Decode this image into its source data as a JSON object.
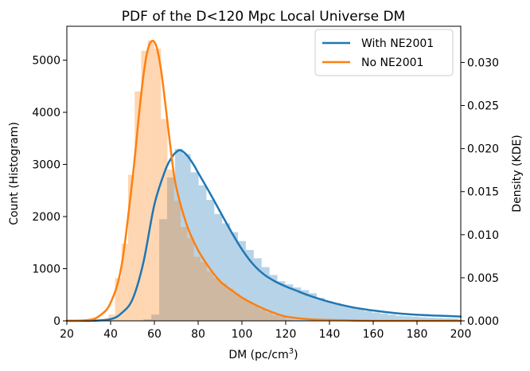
{
  "chart_data": {
    "type": "bar",
    "title": "PDF of the D<120 Mpc Local Universe DM",
    "xlabel": "DM (pc/cm",
    "xlabel_sup": "3",
    "xlabel_end": ")",
    "ylabel_left": "Count (Histogram)",
    "ylabel_right": "Density (KDE)",
    "xlim": [
      20,
      200
    ],
    "ylim_left": [
      0,
      5650
    ],
    "ylim_right": [
      0,
      0.0342
    ],
    "xticks": [
      "20",
      "40",
      "60",
      "80",
      "100",
      "120",
      "140",
      "160",
      "180",
      "200"
    ],
    "yticks_left": [
      "0",
      "1000",
      "2000",
      "3000",
      "4000",
      "5000"
    ],
    "yticks_right": [
      "0.000",
      "0.005",
      "0.010",
      "0.015",
      "0.020",
      "0.025",
      "0.030"
    ],
    "legend_position": "top-right",
    "legend": [
      "With NE2001",
      "No NE2001"
    ],
    "colors": {
      "with_line": "#1f77b4",
      "no_line": "#ff7f0e",
      "with_fill": "#1f77b4",
      "no_fill": "#ff7f0e"
    },
    "histograms": [
      {
        "name": "With NE2001",
        "bin_width": 3.6,
        "bins": [
          [
            55.0,
            30
          ],
          [
            58.6,
            120
          ],
          [
            62.2,
            1950
          ],
          [
            65.8,
            2750
          ],
          [
            69.4,
            3300
          ],
          [
            73.0,
            3200
          ],
          [
            76.6,
            2850
          ],
          [
            80.2,
            2600
          ],
          [
            83.8,
            2320
          ],
          [
            87.4,
            2050
          ],
          [
            91.0,
            1870
          ],
          [
            94.6,
            1700
          ],
          [
            98.2,
            1530
          ],
          [
            101.8,
            1360
          ],
          [
            105.4,
            1200
          ],
          [
            109.0,
            1030
          ],
          [
            112.6,
            880
          ],
          [
            116.2,
            760
          ],
          [
            119.8,
            700
          ],
          [
            123.4,
            640
          ],
          [
            127.0,
            590
          ],
          [
            130.6,
            530
          ],
          [
            134.2,
            440
          ],
          [
            137.8,
            380
          ],
          [
            141.4,
            340
          ],
          [
            145.0,
            300
          ],
          [
            148.6,
            260
          ],
          [
            152.2,
            220
          ],
          [
            155.8,
            190
          ],
          [
            159.4,
            160
          ],
          [
            163.0,
            140
          ],
          [
            166.6,
            120
          ],
          [
            170.2,
            100
          ],
          [
            173.8,
            90
          ],
          [
            177.4,
            80
          ],
          [
            181.0,
            70
          ],
          [
            184.6,
            60
          ],
          [
            188.2,
            55
          ],
          [
            191.8,
            50
          ],
          [
            195.4,
            45
          ]
        ]
      },
      {
        "name": "No NE2001",
        "bin_width": 3.0,
        "bins": [
          [
            36.0,
            30
          ],
          [
            39.0,
            120
          ],
          [
            42.0,
            820
          ],
          [
            45.0,
            1480
          ],
          [
            48.0,
            2800
          ],
          [
            51.0,
            4400
          ],
          [
            54.0,
            5180
          ],
          [
            57.0,
            5380
          ],
          [
            60.0,
            5220
          ],
          [
            63.0,
            3870
          ],
          [
            66.0,
            2900
          ],
          [
            69.0,
            2300
          ],
          [
            72.0,
            1800
          ],
          [
            75.0,
            1590
          ],
          [
            78.0,
            1230
          ],
          [
            81.0,
            1130
          ],
          [
            84.0,
            950
          ],
          [
            87.0,
            820
          ],
          [
            90.0,
            720
          ],
          [
            93.0,
            620
          ],
          [
            96.0,
            520
          ],
          [
            99.0,
            450
          ],
          [
            102.0,
            370
          ],
          [
            105.0,
            290
          ],
          [
            108.0,
            220
          ],
          [
            111.0,
            160
          ],
          [
            114.0,
            110
          ],
          [
            117.0,
            70
          ],
          [
            120.0,
            30
          ]
        ]
      }
    ],
    "series": [
      {
        "name": "With NE2001",
        "x": [
          20,
          30,
          40,
          45,
          50,
          55,
          60,
          65,
          68,
          70,
          72,
          75,
          78,
          80,
          85,
          90,
          95,
          100,
          105,
          110,
          115,
          120,
          125,
          130,
          140,
          150,
          160,
          170,
          180,
          190,
          200
        ],
        "y": [
          0.0,
          0.0,
          0.0002,
          0.0009,
          0.0025,
          0.0068,
          0.0135,
          0.0175,
          0.019,
          0.0196,
          0.0198,
          0.0192,
          0.0181,
          0.0172,
          0.015,
          0.0127,
          0.0104,
          0.0083,
          0.0066,
          0.0054,
          0.0046,
          0.004,
          0.0035,
          0.003,
          0.0022,
          0.0016,
          0.0012,
          0.0009,
          0.0007,
          0.0006,
          0.0005
        ]
      },
      {
        "name": "No NE2001",
        "x": [
          20,
          30,
          35,
          40,
          45,
          50,
          53,
          55,
          57,
          59,
          61,
          63,
          65,
          68,
          70,
          75,
          80,
          85,
          90,
          95,
          100,
          105,
          110,
          115,
          120,
          130,
          140,
          160,
          180,
          200
        ],
        "y": [
          0.0,
          0.0001,
          0.0006,
          0.0021,
          0.0064,
          0.0165,
          0.024,
          0.0285,
          0.0315,
          0.0325,
          0.0318,
          0.0292,
          0.0252,
          0.0188,
          0.0155,
          0.011,
          0.0082,
          0.0062,
          0.0046,
          0.0036,
          0.0027,
          0.002,
          0.0014,
          0.0009,
          0.0005,
          0.0002,
          0.0001,
          0.0,
          0.0,
          0.0
        ]
      }
    ]
  }
}
